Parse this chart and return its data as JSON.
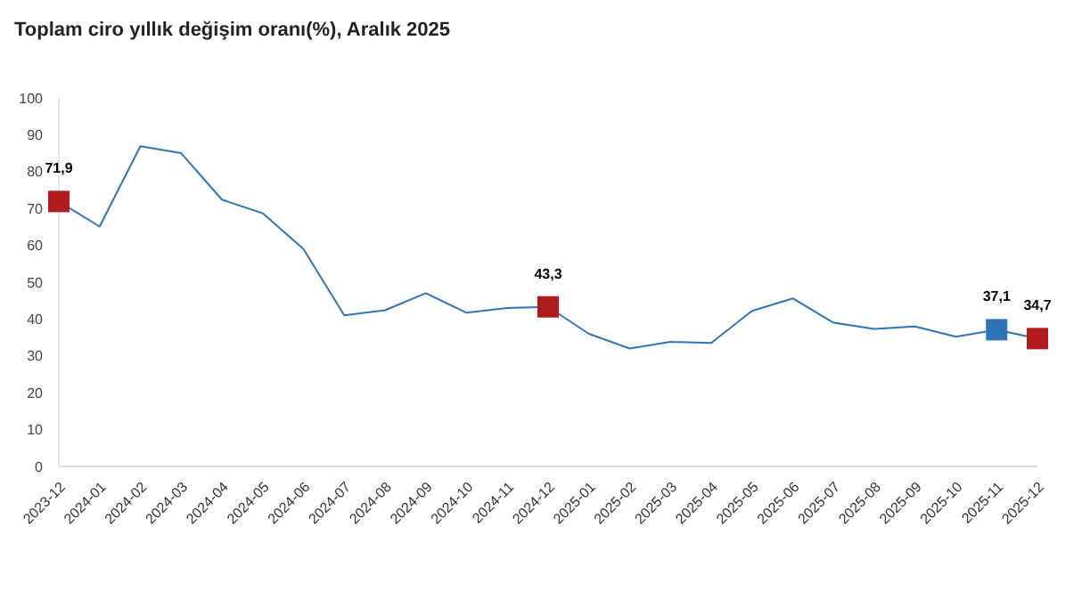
{
  "chart_data": {
    "type": "line",
    "title": "Toplam ciro yıllık değişim oranı(%), Aralık 2025",
    "categories": [
      "2023-12",
      "2024-01",
      "2024-02",
      "2024-03",
      "2024-04",
      "2024-05",
      "2024-06",
      "2024-07",
      "2024-08",
      "2024-09",
      "2024-10",
      "2024-11",
      "2024-12",
      "2025-01",
      "2025-02",
      "2025-03",
      "2025-04",
      "2025-05",
      "2025-06",
      "2025-07",
      "2025-08",
      "2025-09",
      "2025-10",
      "2025-11",
      "2025-12"
    ],
    "series": [
      {
        "color": "#2e75b6",
        "marker": "none",
        "values": [
          71.9,
          65.1,
          86.9,
          85.0,
          72.4,
          68.7,
          59.0,
          41.0,
          42.4,
          47.0,
          41.7,
          43.0,
          43.3,
          36.0,
          32.0,
          33.8,
          33.5,
          42.2,
          45.6,
          39.0,
          37.3,
          38.0,
          35.2,
          37.1,
          34.7
        ]
      },
      {
        "type": "scatter",
        "marker": "square",
        "colors": [
          "#b01c1c",
          null,
          null,
          null,
          null,
          null,
          null,
          null,
          null,
          null,
          null,
          null,
          "#b01c1c",
          null,
          null,
          null,
          null,
          null,
          null,
          null,
          null,
          null,
          null,
          "#2e75b6",
          "#b01c1c"
        ],
        "values": [
          71.9,
          null,
          null,
          null,
          null,
          null,
          null,
          null,
          null,
          null,
          null,
          null,
          43.3,
          null,
          null,
          null,
          null,
          null,
          null,
          null,
          null,
          null,
          null,
          37.1,
          34.7
        ],
        "value_labels": [
          "71,9",
          null,
          null,
          null,
          null,
          null,
          null,
          null,
          null,
          null,
          null,
          null,
          "43,3",
          null,
          null,
          null,
          null,
          null,
          null,
          null,
          null,
          null,
          null,
          "37,1",
          "34,7"
        ]
      }
    ],
    "ylim": [
      0,
      100
    ],
    "yticks": [
      0,
      10,
      20,
      30,
      40,
      50,
      60,
      70,
      80,
      90,
      100
    ],
    "grid": false
  }
}
